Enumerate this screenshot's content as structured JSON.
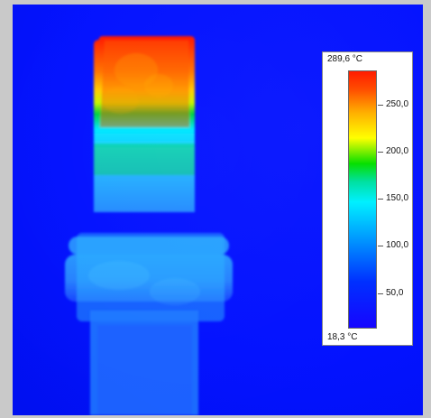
{
  "image": {
    "kind": "thermal camera view",
    "palette": {
      "background_blue": "#0312ff",
      "hot_red": "#ff1c00",
      "orange": "#ff8a00",
      "yellow": "#ffff00",
      "green": "#07df00",
      "cyan": "#00f0ff",
      "light_blue": "#1f9cff"
    }
  },
  "temperature_scale": {
    "max_label": "289,6 °C",
    "min_label": "18,3 °C",
    "ticks": [
      {
        "label": "250,0",
        "value": 250.0
      },
      {
        "label": "200,0",
        "value": 200.0
      },
      {
        "label": "150,0",
        "value": 150.0
      },
      {
        "label": "100,0",
        "value": 100.0
      },
      {
        "label": "50,0",
        "value": 50.0
      }
    ]
  }
}
